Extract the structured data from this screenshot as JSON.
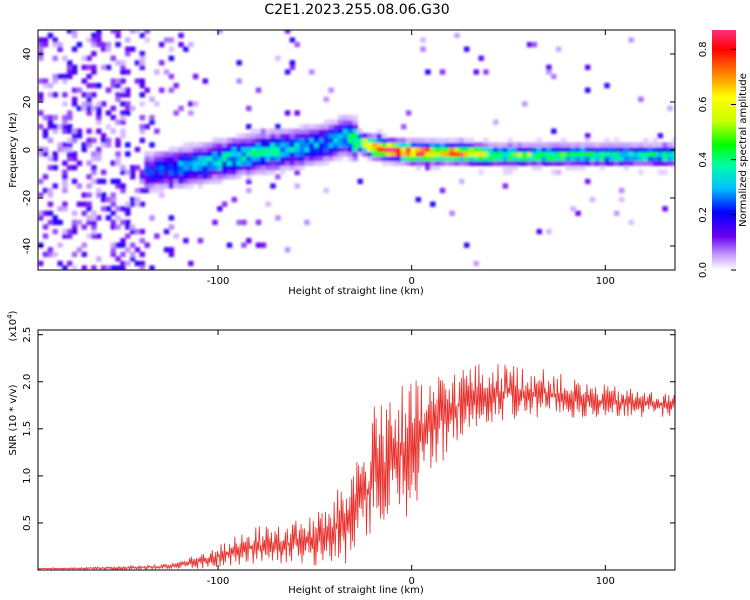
{
  "title": "C2E1.2023.255.08.06.G30",
  "chart_data": [
    {
      "type": "heatmap",
      "xlabel": "Height of straight line (km)",
      "ylabel": "Frequency (Hz)",
      "xlim": [
        -193,
        136
      ],
      "ylim": [
        -50,
        50
      ],
      "x_ticks": [
        -100,
        0,
        100
      ],
      "x_tick_labels": [
        "-100",
        "0",
        "100"
      ],
      "y_ticks": [
        -40,
        -20,
        0,
        20,
        40
      ],
      "y_tick_labels": [
        "-40",
        "-20",
        "0",
        "20",
        "40"
      ],
      "colorbar": {
        "label": "Normalized spectral amplitude",
        "range": [
          0,
          0.87
        ],
        "ticks": [
          0.0,
          0.2,
          0.4,
          0.6,
          0.8
        ],
        "tick_labels": [
          "0.0",
          "0.2",
          "0.4",
          "0.6",
          "0.8"
        ],
        "colormap": [
          "#ffffff",
          "#c6a0ff",
          "#6a00f0",
          "#0000ff",
          "#00c0ff",
          "#00ffa0",
          "#00ff00",
          "#c8ff00",
          "#ffff00",
          "#ff8000",
          "#ff0000",
          "#ff3080"
        ]
      },
      "ridge": {
        "x": [
          -140,
          -120,
          -100,
          -80,
          -60,
          -45,
          -35,
          -30,
          -20,
          0,
          20,
          40,
          60,
          80,
          100,
          120,
          136
        ],
        "freq_hz": [
          -10,
          -8,
          -5,
          -2,
          0,
          2,
          5,
          3,
          0,
          -2,
          -2,
          -3,
          -3,
          -3,
          -3,
          -3,
          -3
        ],
        "amplitude": [
          0.22,
          0.3,
          0.35,
          0.38,
          0.32,
          0.28,
          0.35,
          0.5,
          0.75,
          0.8,
          0.7,
          0.5,
          0.45,
          0.45,
          0.42,
          0.4,
          0.4
        ]
      }
    },
    {
      "type": "line",
      "xlabel": "Height of straight line (km)",
      "ylabel": "SNR (10 * v/v)",
      "y_multiplier": "(x10",
      "y_multiplier_exp": "4",
      "y_multiplier_close": ")",
      "xlim": [
        -193,
        136
      ],
      "ylim": [
        0,
        25500
      ],
      "x_ticks": [
        -100,
        0,
        100
      ],
      "x_tick_labels": [
        "-100",
        "0",
        "100"
      ],
      "y_ticks": [
        5000,
        10000,
        15000,
        20000,
        25000
      ],
      "y_tick_labels": [
        "0.5",
        "1.0",
        "1.5",
        "2.0",
        "2.5"
      ],
      "color": "#e8302c",
      "envelope": {
        "x": [
          -193,
          -150,
          -125,
          -110,
          -100,
          -80,
          -60,
          -45,
          -35,
          -25,
          -15,
          0,
          15,
          30,
          50,
          70,
          90,
          110,
          136
        ],
        "mean": [
          150,
          200,
          400,
          900,
          1500,
          2500,
          2800,
          3500,
          5000,
          7500,
          11000,
          13000,
          16000,
          18500,
          19000,
          18800,
          18000,
          17800,
          17500
        ],
        "spread": [
          80,
          150,
          300,
          800,
          1200,
          2200,
          2500,
          3200,
          4500,
          7000,
          9000,
          7000,
          5000,
          3500,
          3000,
          2500,
          2000,
          1600,
          1200
        ]
      }
    }
  ]
}
